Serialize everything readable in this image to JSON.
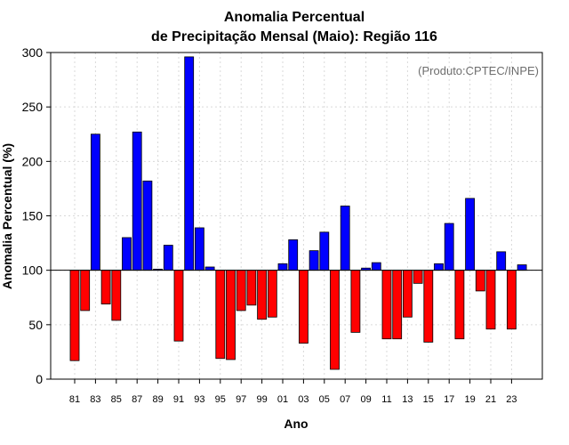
{
  "chart_data": {
    "type": "bar",
    "title_line1": "Anomalia Percentual",
    "title_line2": "de Precipitação Mensal (Maio): Região 116",
    "xlabel": "Ano",
    "ylabel": "Anomalia Percentual (%)",
    "credit": "(Produto:CPTEC/INPE)",
    "baseline": 100,
    "ylim": [
      0,
      300
    ],
    "yticks": [
      0,
      50,
      100,
      150,
      200,
      250,
      300
    ],
    "colors": {
      "above": "#0000ff",
      "below": "#ff0000",
      "outline": "#000000",
      "grid": "#d9d9d9"
    },
    "categories": [
      "81",
      "82",
      "83",
      "84",
      "85",
      "86",
      "87",
      "88",
      "89",
      "90",
      "91",
      "92",
      "93",
      "94",
      "95",
      "96",
      "97",
      "98",
      "99",
      "00",
      "01",
      "02",
      "03",
      "04",
      "05",
      "06",
      "07",
      "08",
      "09",
      "10",
      "11",
      "12",
      "13",
      "14",
      "15",
      "16",
      "17",
      "18",
      "19",
      "20",
      "21",
      "22",
      "23",
      "24"
    ],
    "tick_labels": [
      "81",
      "83",
      "85",
      "87",
      "89",
      "91",
      "93",
      "95",
      "97",
      "99",
      "01",
      "03",
      "05",
      "07",
      "09",
      "11",
      "13",
      "15",
      "17",
      "19",
      "21",
      "23"
    ],
    "values": [
      17,
      63,
      225,
      69,
      54,
      130,
      227,
      182,
      101,
      123,
      35,
      296,
      139,
      103,
      19,
      18,
      63,
      68,
      55,
      57,
      106,
      128,
      33,
      118,
      135,
      9,
      159,
      43,
      102,
      107,
      37,
      37,
      57,
      88,
      34,
      106,
      143,
      37,
      166,
      81,
      46,
      117,
      46,
      105
    ]
  }
}
